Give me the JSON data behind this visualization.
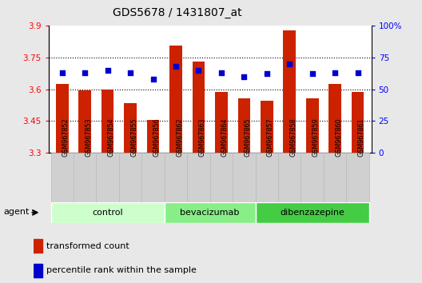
{
  "title": "GDS5678 / 1431807_at",
  "samples": [
    "GSM967852",
    "GSM967853",
    "GSM967854",
    "GSM967855",
    "GSM967856",
    "GSM967862",
    "GSM967863",
    "GSM967864",
    "GSM967865",
    "GSM967857",
    "GSM967858",
    "GSM967859",
    "GSM967860",
    "GSM967861"
  ],
  "red_values": [
    3.625,
    3.595,
    3.598,
    3.535,
    3.455,
    3.805,
    3.73,
    3.585,
    3.555,
    3.545,
    3.875,
    3.555,
    3.625,
    3.585
  ],
  "blue_values": [
    63,
    63,
    65,
    63,
    58,
    68,
    65,
    63,
    60,
    62,
    70,
    62,
    63,
    63
  ],
  "ylim_left": [
    3.3,
    3.9
  ],
  "ylim_right": [
    0,
    100
  ],
  "yticks_left": [
    3.3,
    3.45,
    3.6,
    3.75,
    3.9
  ],
  "yticks_right": [
    0,
    25,
    50,
    75,
    100
  ],
  "ytick_labels_left": [
    "3.3",
    "3.45",
    "3.6",
    "3.75",
    "3.9"
  ],
  "ytick_labels_right": [
    "0",
    "25",
    "50",
    "75",
    "100%"
  ],
  "hlines": [
    3.45,
    3.6,
    3.75
  ],
  "groups": [
    {
      "label": "control",
      "start": 0,
      "end": 5,
      "color": "#ccffcc"
    },
    {
      "label": "bevacizumab",
      "start": 5,
      "end": 9,
      "color": "#88ee88"
    },
    {
      "label": "dibenzazepine",
      "start": 9,
      "end": 14,
      "color": "#44cc44"
    }
  ],
  "bar_color": "#cc2200",
  "dot_color": "#0000cc",
  "bar_width": 0.55,
  "agent_label": "agent",
  "legend_red": "transformed count",
  "legend_blue": "percentile rank within the sample",
  "bg_color": "#e8e8e8",
  "plot_bg": "#ffffff",
  "tick_bg": "#d0d0d0"
}
